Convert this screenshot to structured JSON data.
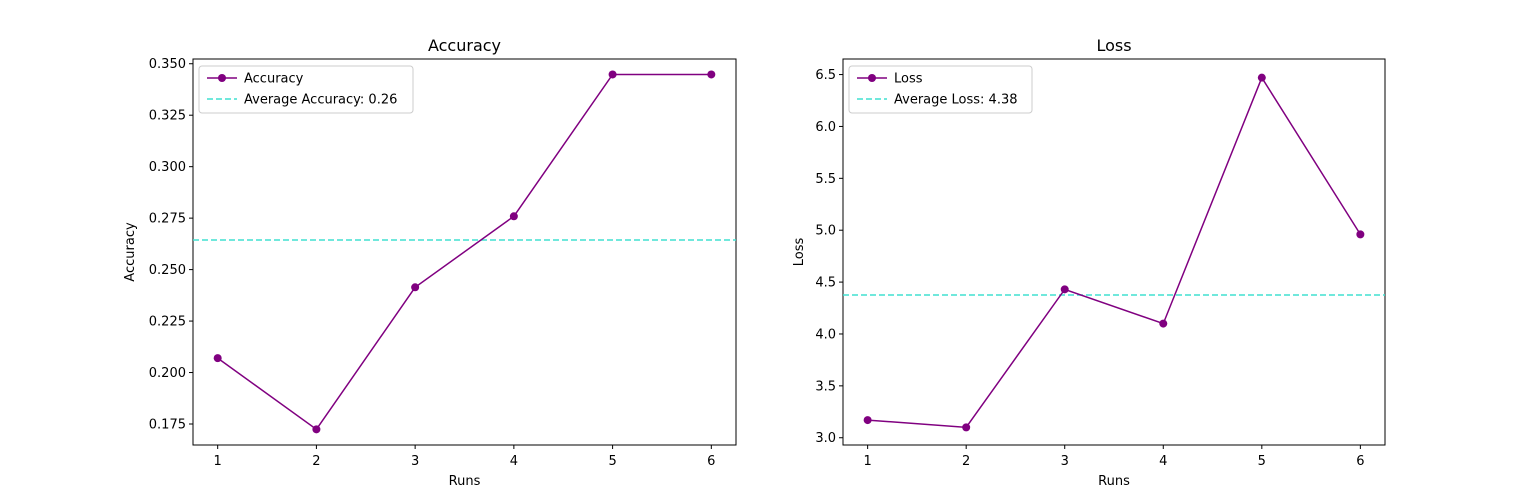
{
  "chart_data": [
    {
      "type": "line",
      "title": "Accuracy",
      "xlabel": "Runs",
      "ylabel": "Accuracy",
      "x": [
        1,
        2,
        3,
        4,
        5,
        6
      ],
      "xticks": [
        "1",
        "2",
        "3",
        "4",
        "5",
        "6"
      ],
      "xlim": [
        0.75,
        6.25
      ],
      "ylim": [
        0.1648,
        0.3523
      ],
      "yticks": [
        "0.175",
        "0.200",
        "0.225",
        "0.250",
        "0.275",
        "0.300",
        "0.325",
        "0.350"
      ],
      "grid": false,
      "legend_position": "top-left",
      "series": [
        {
          "name": "Accuracy",
          "values": [
            0.207,
            0.1724,
            0.2414,
            0.2759,
            0.3448,
            0.3448
          ],
          "color": "#800080",
          "style": "solid",
          "marker": "circle"
        }
      ],
      "average": {
        "name": "Average Accuracy: 0.26",
        "value": 0.2644,
        "color": "#40e0d0",
        "style": "dashed"
      }
    },
    {
      "type": "line",
      "title": "Loss",
      "xlabel": "Runs",
      "ylabel": "Loss",
      "x": [
        1,
        2,
        3,
        4,
        5,
        6
      ],
      "xticks": [
        "1",
        "2",
        "3",
        "4",
        "5",
        "6"
      ],
      "xlim": [
        0.75,
        6.25
      ],
      "ylim": [
        2.93,
        6.65
      ],
      "yticks": [
        "3.0",
        "3.5",
        "4.0",
        "4.5",
        "5.0",
        "5.5",
        "6.0",
        "6.5"
      ],
      "grid": false,
      "legend_position": "top-left",
      "series": [
        {
          "name": "Loss",
          "values": [
            3.17,
            3.1,
            4.43,
            4.1,
            6.47,
            4.96
          ],
          "color": "#800080",
          "style": "solid",
          "marker": "circle"
        }
      ],
      "average": {
        "name": "Average Loss: 4.38",
        "value": 4.375,
        "color": "#40e0d0",
        "style": "dashed"
      }
    }
  ]
}
